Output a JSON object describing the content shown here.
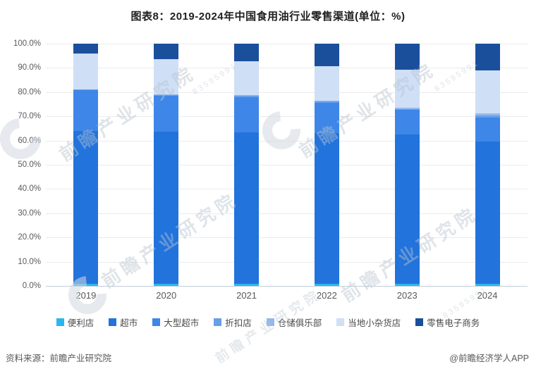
{
  "title": "图表8：2019-2024年中国食用油行业零售渠道(单位：%)",
  "chart_data": {
    "type": "bar",
    "stacked": true,
    "title": "图表8：2019-2024年中国食用油行业零售渠道(单位：%)",
    "unit": "%",
    "categories": [
      "2019",
      "2020",
      "2021",
      "2022",
      "2023",
      "2024"
    ],
    "series": [
      {
        "name": "便利店",
        "color": "#29b7f2",
        "values": [
          0.8,
          0.8,
          1.0,
          0.8,
          0.9,
          0.8
        ]
      },
      {
        "name": "超市",
        "color": "#2273dc",
        "values": [
          63.2,
          62.8,
          62.5,
          62.4,
          61.6,
          58.8
        ]
      },
      {
        "name": "大型超市",
        "color": "#3e86e8",
        "values": [
          16.7,
          15.0,
          14.5,
          12.5,
          10.1,
          10.0
        ]
      },
      {
        "name": "折扣店",
        "color": "#689fea",
        "values": [
          0.3,
          0.3,
          0.4,
          0.5,
          0.5,
          0.7
        ]
      },
      {
        "name": "仓储俱乐部",
        "color": "#94b8ec",
        "values": [
          0.2,
          0.2,
          0.3,
          0.4,
          0.5,
          1.0
        ]
      },
      {
        "name": "当地小杂货店",
        "color": "#cfdff6",
        "values": [
          14.7,
          14.6,
          14.1,
          14.0,
          15.7,
          17.8
        ]
      },
      {
        "name": "零售电子商务",
        "color": "#1a4f9c",
        "values": [
          4.1,
          6.3,
          7.2,
          9.4,
          10.7,
          10.9
        ]
      }
    ],
    "y_axis": {
      "min": 0,
      "max": 100,
      "tick_labels": [
        "100.0%",
        "90.0%",
        "80.0%",
        "70.0%",
        "60.0%",
        "50.0%",
        "40.0%",
        "30.0%",
        "20.0%",
        "10.0%",
        "0.0%"
      ]
    },
    "grid": true,
    "legend_position": "bottom"
  },
  "footer": {
    "source": "资料来源：前瞻产业研究院",
    "credit": "@前瞻经济学人APP"
  },
  "watermark": {
    "text": "前瞻产业研究院",
    "digits": "83595991"
  }
}
